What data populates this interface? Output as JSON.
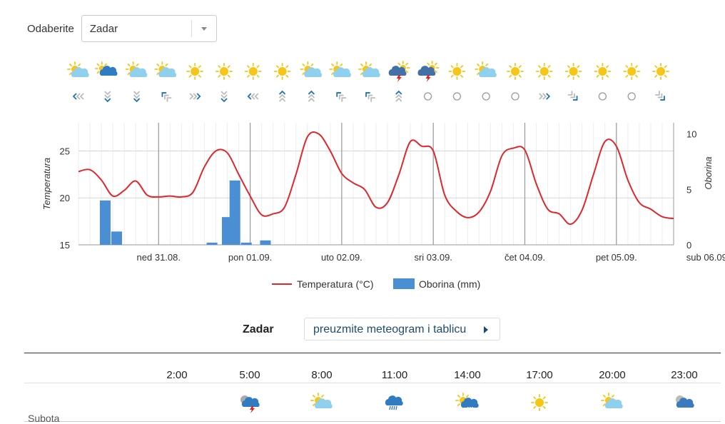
{
  "selector": {
    "label": "Odaberite",
    "value": "Zadar"
  },
  "forecast_strip": {
    "weather_icons": [
      "sun-cloud",
      "cloud-rain",
      "sun-cloud",
      "sun-cloud",
      "sun",
      "sun",
      "sun",
      "sun",
      "sun-cloud",
      "sun-cloud",
      "sun-cloud",
      "storm",
      "storm",
      "sun",
      "sun-cloud",
      "sun",
      "sun",
      "sun",
      "sun",
      "sun",
      "sun"
    ],
    "wind_icons": [
      "wind-w",
      "wind-s",
      "wind-s",
      "wind-nw",
      "wind-e",
      "wind-s",
      "wind-w",
      "wind-n",
      "wind-n",
      "wind-nw",
      "wind-nw",
      "wind-n",
      "calm",
      "calm",
      "calm",
      "calm",
      "wind-e",
      "wind-se",
      "calm",
      "calm",
      "wind-se"
    ]
  },
  "chart_data": {
    "type": "line+bar",
    "x_ticks": [
      "ned 31.08.",
      "pon 01.09.",
      "uto 02.09.",
      "sri 03.09.",
      "čet 04.09.",
      "pet 05.09.",
      "sub 06.09."
    ],
    "ylabel_left": "Temperatura",
    "ylabel_right": "Oborina",
    "y_left_ticks": [
      "25",
      "20",
      "15"
    ],
    "y_right_ticks": [
      "10",
      "5",
      "0"
    ],
    "ylim_left": [
      15,
      28
    ],
    "ylim_right": [
      0,
      11
    ],
    "x_range_hours": [
      0,
      156
    ],
    "series": [
      {
        "name": "Temperatura (°C)",
        "type": "line",
        "color": "#e0262b",
        "x": [
          0,
          3,
          6,
          9,
          12,
          15,
          18,
          21,
          24,
          27,
          30,
          33,
          36,
          39,
          42,
          45,
          48,
          51,
          54,
          57,
          60,
          63,
          66,
          69,
          72,
          75,
          78,
          81,
          84,
          87,
          90,
          93,
          96,
          99,
          102,
          105,
          108,
          111,
          114,
          117,
          120,
          123,
          126,
          129,
          132,
          135,
          138,
          141,
          144,
          147,
          150,
          153,
          156
        ],
        "y": [
          22.8,
          23,
          21.9,
          20.2,
          20.8,
          21.8,
          20.3,
          20.1,
          20.2,
          20.1,
          20.6,
          23.3,
          25,
          24.8,
          22.5,
          20.2,
          18.2,
          18.3,
          19,
          22.5,
          26.5,
          26.8,
          25,
          22.6,
          21.6,
          20.9,
          19,
          19.5,
          22.5,
          26,
          25.5,
          25,
          20.3,
          18.6,
          17.9,
          18.5,
          20.7,
          24.5,
          25.3,
          25.1,
          21.5,
          18.8,
          18.3,
          17.2,
          18.7,
          22.5,
          26,
          25.5,
          21.9,
          19.5,
          18.8,
          18,
          17.8
        ]
      },
      {
        "name": "Oborina (mm)",
        "type": "bar",
        "color": "#4a8fd4",
        "x": [
          7,
          10,
          35,
          39,
          41,
          44,
          49
        ],
        "y": [
          4,
          1.2,
          0.2,
          2.5,
          5.8,
          0.2,
          0.4
        ]
      }
    ],
    "legend_position": "bottom",
    "grid": true
  },
  "download": {
    "city": "Zadar",
    "button_label": "preuzmite meteogram i tablicu"
  },
  "table": {
    "hours": [
      "2:00",
      "5:00",
      "8:00",
      "11:00",
      "14:00",
      "17:00",
      "20:00",
      "23:00"
    ],
    "day_label": "Subota",
    "icons": [
      "none",
      "storm-night",
      "sun-cloud",
      "rain",
      "sun-rain",
      "sun",
      "sun-cloud",
      "cloud-night"
    ]
  },
  "colors": {
    "temperature": "#e0262b",
    "precipitation": "#4a8fd4",
    "sun": "#f5c518",
    "cloud": "#8fd0ef",
    "dark_cloud": "#2f7cc2",
    "wind": "#1d73b3",
    "calm": "#999999"
  }
}
